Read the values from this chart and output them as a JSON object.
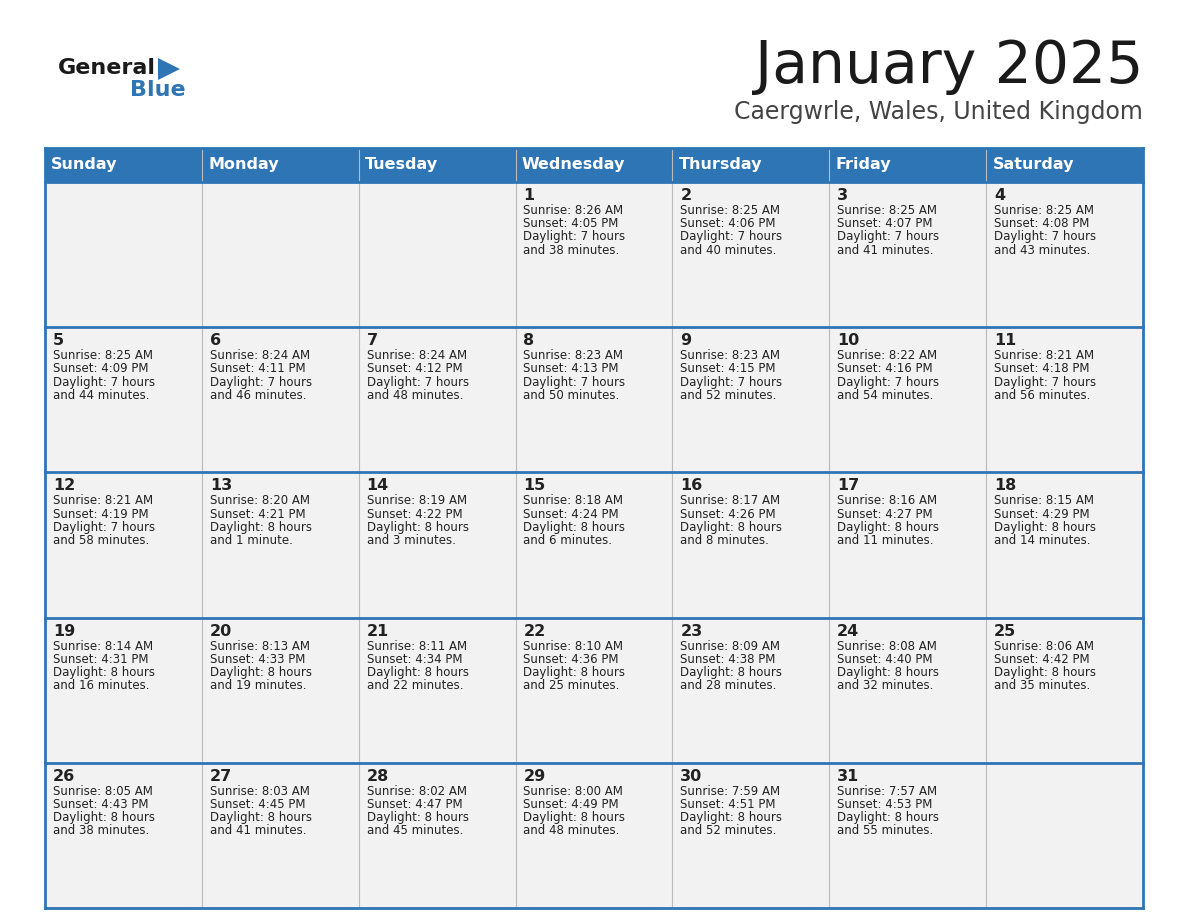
{
  "title": "January 2025",
  "subtitle": "Caergwrle, Wales, United Kingdom",
  "days_of_week": [
    "Sunday",
    "Monday",
    "Tuesday",
    "Wednesday",
    "Thursday",
    "Friday",
    "Saturday"
  ],
  "header_bg": "#2E75B6",
  "header_text_color": "#FFFFFF",
  "cell_bg": "#F2F2F2",
  "border_color": "#2E75B6",
  "title_color": "#1a1a1a",
  "subtitle_color": "#444444",
  "text_color": "#222222",
  "calendar": [
    [
      null,
      null,
      null,
      {
        "day": 1,
        "sunrise": "8:26 AM",
        "sunset": "4:05 PM",
        "daylight_h": "7 hours",
        "daylight_m": "and 38 minutes."
      },
      {
        "day": 2,
        "sunrise": "8:25 AM",
        "sunset": "4:06 PM",
        "daylight_h": "7 hours",
        "daylight_m": "and 40 minutes."
      },
      {
        "day": 3,
        "sunrise": "8:25 AM",
        "sunset": "4:07 PM",
        "daylight_h": "7 hours",
        "daylight_m": "and 41 minutes."
      },
      {
        "day": 4,
        "sunrise": "8:25 AM",
        "sunset": "4:08 PM",
        "daylight_h": "7 hours",
        "daylight_m": "and 43 minutes."
      }
    ],
    [
      {
        "day": 5,
        "sunrise": "8:25 AM",
        "sunset": "4:09 PM",
        "daylight_h": "7 hours",
        "daylight_m": "and 44 minutes."
      },
      {
        "day": 6,
        "sunrise": "8:24 AM",
        "sunset": "4:11 PM",
        "daylight_h": "7 hours",
        "daylight_m": "and 46 minutes."
      },
      {
        "day": 7,
        "sunrise": "8:24 AM",
        "sunset": "4:12 PM",
        "daylight_h": "7 hours",
        "daylight_m": "and 48 minutes."
      },
      {
        "day": 8,
        "sunrise": "8:23 AM",
        "sunset": "4:13 PM",
        "daylight_h": "7 hours",
        "daylight_m": "and 50 minutes."
      },
      {
        "day": 9,
        "sunrise": "8:23 AM",
        "sunset": "4:15 PM",
        "daylight_h": "7 hours",
        "daylight_m": "and 52 minutes."
      },
      {
        "day": 10,
        "sunrise": "8:22 AM",
        "sunset": "4:16 PM",
        "daylight_h": "7 hours",
        "daylight_m": "and 54 minutes."
      },
      {
        "day": 11,
        "sunrise": "8:21 AM",
        "sunset": "4:18 PM",
        "daylight_h": "7 hours",
        "daylight_m": "and 56 minutes."
      }
    ],
    [
      {
        "day": 12,
        "sunrise": "8:21 AM",
        "sunset": "4:19 PM",
        "daylight_h": "7 hours",
        "daylight_m": "and 58 minutes."
      },
      {
        "day": 13,
        "sunrise": "8:20 AM",
        "sunset": "4:21 PM",
        "daylight_h": "8 hours",
        "daylight_m": "and 1 minute."
      },
      {
        "day": 14,
        "sunrise": "8:19 AM",
        "sunset": "4:22 PM",
        "daylight_h": "8 hours",
        "daylight_m": "and 3 minutes."
      },
      {
        "day": 15,
        "sunrise": "8:18 AM",
        "sunset": "4:24 PM",
        "daylight_h": "8 hours",
        "daylight_m": "and 6 minutes."
      },
      {
        "day": 16,
        "sunrise": "8:17 AM",
        "sunset": "4:26 PM",
        "daylight_h": "8 hours",
        "daylight_m": "and 8 minutes."
      },
      {
        "day": 17,
        "sunrise": "8:16 AM",
        "sunset": "4:27 PM",
        "daylight_h": "8 hours",
        "daylight_m": "and 11 minutes."
      },
      {
        "day": 18,
        "sunrise": "8:15 AM",
        "sunset": "4:29 PM",
        "daylight_h": "8 hours",
        "daylight_m": "and 14 minutes."
      }
    ],
    [
      {
        "day": 19,
        "sunrise": "8:14 AM",
        "sunset": "4:31 PM",
        "daylight_h": "8 hours",
        "daylight_m": "and 16 minutes."
      },
      {
        "day": 20,
        "sunrise": "8:13 AM",
        "sunset": "4:33 PM",
        "daylight_h": "8 hours",
        "daylight_m": "and 19 minutes."
      },
      {
        "day": 21,
        "sunrise": "8:11 AM",
        "sunset": "4:34 PM",
        "daylight_h": "8 hours",
        "daylight_m": "and 22 minutes."
      },
      {
        "day": 22,
        "sunrise": "8:10 AM",
        "sunset": "4:36 PM",
        "daylight_h": "8 hours",
        "daylight_m": "and 25 minutes."
      },
      {
        "day": 23,
        "sunrise": "8:09 AM",
        "sunset": "4:38 PM",
        "daylight_h": "8 hours",
        "daylight_m": "and 28 minutes."
      },
      {
        "day": 24,
        "sunrise": "8:08 AM",
        "sunset": "4:40 PM",
        "daylight_h": "8 hours",
        "daylight_m": "and 32 minutes."
      },
      {
        "day": 25,
        "sunrise": "8:06 AM",
        "sunset": "4:42 PM",
        "daylight_h": "8 hours",
        "daylight_m": "and 35 minutes."
      }
    ],
    [
      {
        "day": 26,
        "sunrise": "8:05 AM",
        "sunset": "4:43 PM",
        "daylight_h": "8 hours",
        "daylight_m": "and 38 minutes."
      },
      {
        "day": 27,
        "sunrise": "8:03 AM",
        "sunset": "4:45 PM",
        "daylight_h": "8 hours",
        "daylight_m": "and 41 minutes."
      },
      {
        "day": 28,
        "sunrise": "8:02 AM",
        "sunset": "4:47 PM",
        "daylight_h": "8 hours",
        "daylight_m": "and 45 minutes."
      },
      {
        "day": 29,
        "sunrise": "8:00 AM",
        "sunset": "4:49 PM",
        "daylight_h": "8 hours",
        "daylight_m": "and 48 minutes."
      },
      {
        "day": 30,
        "sunrise": "7:59 AM",
        "sunset": "4:51 PM",
        "daylight_h": "8 hours",
        "daylight_m": "and 52 minutes."
      },
      {
        "day": 31,
        "sunrise": "7:57 AM",
        "sunset": "4:53 PM",
        "daylight_h": "8 hours",
        "daylight_m": "and 55 minutes."
      },
      null
    ]
  ]
}
